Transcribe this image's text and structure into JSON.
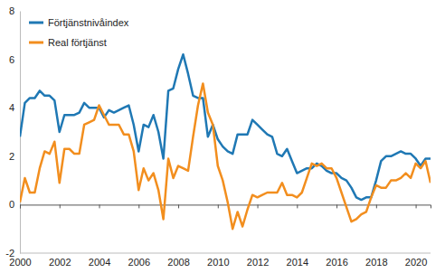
{
  "chart_data": {
    "type": "line",
    "x": [
      2000,
      2000.25,
      2000.5,
      2000.75,
      2001,
      2001.25,
      2001.5,
      2001.75,
      2002,
      2002.25,
      2002.5,
      2002.75,
      2003,
      2003.25,
      2003.5,
      2003.75,
      2004,
      2004.25,
      2004.5,
      2004.75,
      2005,
      2005.25,
      2005.5,
      2005.75,
      2006,
      2006.25,
      2006.5,
      2006.75,
      2007,
      2007.25,
      2007.5,
      2007.75,
      2008,
      2008.25,
      2008.5,
      2008.75,
      2009,
      2009.25,
      2009.5,
      2009.75,
      2010,
      2010.25,
      2010.5,
      2010.75,
      2011,
      2011.25,
      2011.5,
      2011.75,
      2012,
      2012.25,
      2012.5,
      2012.75,
      2013,
      2013.25,
      2013.5,
      2013.75,
      2014,
      2014.25,
      2014.5,
      2014.75,
      2015,
      2015.25,
      2015.5,
      2015.75,
      2016,
      2016.25,
      2016.5,
      2016.75,
      2017,
      2017.25,
      2017.5,
      2017.75,
      2018,
      2018.25,
      2018.5,
      2018.75,
      2019,
      2019.25,
      2019.5,
      2019.75,
      2020,
      2020.25,
      2020.5,
      2020.75
    ],
    "series": [
      {
        "name": "Förtjänstnivåindex",
        "color": "#1f78b4",
        "values": [
          2.8,
          4.2,
          4.4,
          4.4,
          4.7,
          4.5,
          4.5,
          4.3,
          3.0,
          3.7,
          3.7,
          3.7,
          3.8,
          4.2,
          4.0,
          4.0,
          4.0,
          3.6,
          3.9,
          3.8,
          3.9,
          4.0,
          4.1,
          3.3,
          2.2,
          3.3,
          3.2,
          3.7,
          3.0,
          1.9,
          4.7,
          4.8,
          5.6,
          6.2,
          5.4,
          4.5,
          4.4,
          4.4,
          2.8,
          3.3,
          2.7,
          2.4,
          2.2,
          2.1,
          2.9,
          2.9,
          2.9,
          3.5,
          3.3,
          3.1,
          2.9,
          2.8,
          2.1,
          2.0,
          2.3,
          1.8,
          1.3,
          1.4,
          1.5,
          1.5,
          1.7,
          1.6,
          1.4,
          1.3,
          1.3,
          1.1,
          1.0,
          0.7,
          0.3,
          0.2,
          0.3,
          0.3,
          1.0,
          1.8,
          2.0,
          2.0,
          2.1,
          2.2,
          2.1,
          2.1,
          1.9,
          1.6,
          1.9,
          1.9
        ]
      },
      {
        "name": "Real förtjänst",
        "color": "#f28e1e",
        "values": [
          0.1,
          1.1,
          0.5,
          0.5,
          1.5,
          2.2,
          2.1,
          2.6,
          0.9,
          2.3,
          2.3,
          2.1,
          2.1,
          3.3,
          3.4,
          3.5,
          4.1,
          3.7,
          3.3,
          3.3,
          3.3,
          2.9,
          2.9,
          2.2,
          0.6,
          1.5,
          1.0,
          1.3,
          0.6,
          -0.6,
          1.9,
          1.1,
          1.6,
          1.5,
          1.4,
          2.8,
          4.1,
          5.0,
          3.8,
          3.3,
          1.6,
          1.0,
          0.1,
          -1.0,
          -0.3,
          -0.9,
          -0.2,
          0.4,
          0.3,
          0.4,
          0.5,
          0.5,
          0.5,
          0.9,
          0.4,
          0.4,
          0.3,
          0.5,
          1.1,
          1.7,
          1.6,
          1.7,
          1.5,
          1.5,
          1.1,
          0.5,
          -0.1,
          -0.7,
          -0.6,
          -0.4,
          -0.3,
          0.3,
          0.8,
          0.7,
          0.7,
          1.0,
          1.0,
          1.1,
          1.3,
          1.1,
          1.7,
          1.5,
          1.8,
          0.9
        ]
      }
    ],
    "xlim": [
      2000,
      2020.75
    ],
    "xticks": [
      2000,
      2002,
      2004,
      2006,
      2008,
      2010,
      2012,
      2014,
      2016,
      2018,
      2020
    ],
    "ylim": [
      -2,
      8
    ],
    "yticks": [
      -2,
      0,
      2,
      4,
      6,
      8
    ],
    "grid": false,
    "legend": "upper left"
  }
}
